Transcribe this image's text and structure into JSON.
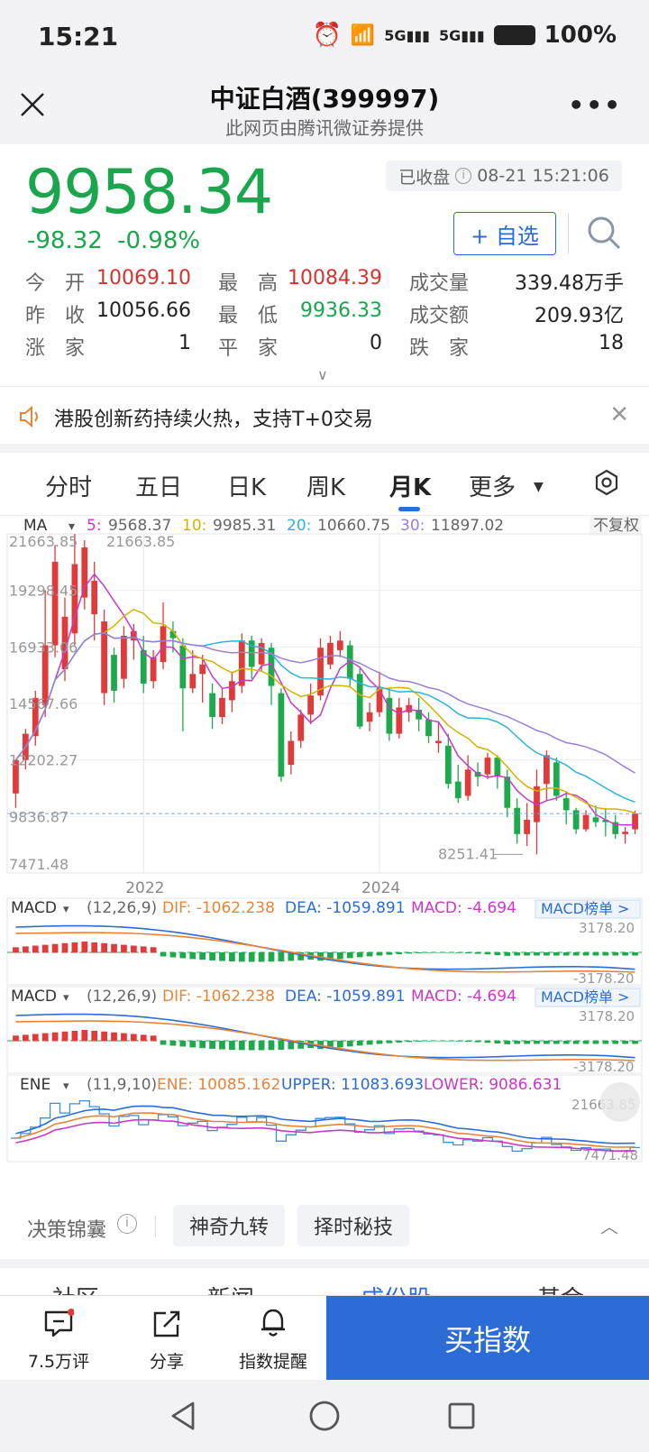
{
  "status": {
    "time": "15:21",
    "battery": "100%"
  },
  "header": {
    "title": "中证白酒(399997)",
    "subtitle": "此网页由腾讯微证券提供"
  },
  "quote": {
    "price": "9958.34",
    "change": "-98.32",
    "change_pct": "-0.98%",
    "status_label": "已收盘",
    "status_time": "08-21 15:21:06",
    "add_label": "+ 自选",
    "rows": [
      [
        {
          "label": "今　开",
          "value": "10069.10",
          "color": "red"
        },
        {
          "label": "最　高",
          "value": "10084.39",
          "color": "red"
        },
        {
          "label": "成交量",
          "value": "339.48万手",
          "color": "black"
        }
      ],
      [
        {
          "label": "昨　收",
          "value": "10056.66",
          "color": "black"
        },
        {
          "label": "最　低",
          "value": "9936.33",
          "color": "green"
        },
        {
          "label": "成交额",
          "value": "209.93亿",
          "color": "black"
        }
      ],
      [
        {
          "label": "涨　家",
          "value": "1",
          "color": "black"
        },
        {
          "label": "平　家",
          "value": "0",
          "color": "black"
        },
        {
          "label": "跌　家",
          "value": "18",
          "color": "black"
        }
      ]
    ]
  },
  "notice": {
    "text": "港股创新药持续火热，支持T+0交易"
  },
  "tabs": [
    "分时",
    "五日",
    "日K",
    "周K",
    "月K",
    "更多"
  ],
  "active_tab": "月K",
  "chart_data": {
    "type": "candlestick",
    "ma_label": "MA",
    "ma_values": [
      {
        "label": "5:",
        "value": "9568.37",
        "color": "#c938c9"
      },
      {
        "label": "10:",
        "value": "9985.31",
        "color": "#d4b300"
      },
      {
        "label": "20:",
        "value": "10660.75",
        "color": "#2ab3dc"
      },
      {
        "label": "30:",
        "value": "11897.02",
        "color": "#9a7fd8"
      }
    ],
    "adjust_label": "不复权",
    "y_ticks": [
      "21663.85",
      "19298.45",
      "16933.06",
      "14567.66",
      "12202.27",
      "9836.87",
      "7471.48"
    ],
    "y_range": [
      7471.48,
      21663.85
    ],
    "x_ticks": [
      "2022",
      "2024"
    ],
    "max_label": "21663.85",
    "min_label": "8251.41",
    "macd": {
      "label": "MACD",
      "params": "(12,26,9)",
      "dif": "DIF: -1062.238",
      "dea": "DEA: -1059.891",
      "macd": "MACD: -4.694",
      "rank_label": "MACD榜单 >",
      "top": "3178.20",
      "bottom": "-3178.20"
    },
    "ene": {
      "label": "ENE",
      "params": "(11,9,10)",
      "ene": "ENE: 10085.162",
      "upper": "UPPER: 11083.693",
      "lower": "LOWER: 9086.631",
      "top": "21663.85",
      "bottom": "7471.48"
    },
    "candles": [
      [
        10800,
        12200,
        11900,
        10200
      ],
      [
        12200,
        13300,
        13500,
        11800
      ],
      [
        13200,
        14800,
        15100,
        12800
      ],
      [
        14500,
        17000,
        19300,
        14000
      ],
      [
        17000,
        20500,
        21200,
        16500
      ],
      [
        16000,
        18200,
        19000,
        15500
      ],
      [
        17500,
        20400,
        21663.85,
        17000
      ],
      [
        19000,
        21100,
        21400,
        18500
      ],
      [
        18300,
        19700,
        20500,
        17200
      ],
      [
        15000,
        18000,
        18500,
        14500
      ],
      [
        16600,
        15100,
        16900,
        14600
      ],
      [
        15600,
        17400,
        17800,
        15200
      ],
      [
        17200,
        17600,
        17900,
        16400
      ],
      [
        16800,
        15400,
        17400,
        15000
      ],
      [
        15500,
        16500,
        16800,
        15200
      ],
      [
        16300,
        17800,
        18800,
        16000
      ],
      [
        17600,
        17300,
        18000,
        16700
      ],
      [
        17000,
        15200,
        17300,
        13400
      ],
      [
        15200,
        15800,
        16800,
        15000
      ],
      [
        15800,
        16200,
        16600,
        14600
      ],
      [
        15000,
        14000,
        15400,
        13500
      ],
      [
        14000,
        14800,
        15200,
        13700
      ],
      [
        14700,
        15500,
        15900,
        14200
      ],
      [
        15300,
        17200,
        17500,
        15000
      ],
      [
        17200,
        16100,
        17400,
        15600
      ],
      [
        16200,
        17100,
        17300,
        15900
      ],
      [
        16900,
        15300,
        17100,
        14500
      ],
      [
        15000,
        11500,
        15200,
        11300
      ],
      [
        12000,
        13000,
        13400,
        11600
      ],
      [
        13000,
        14100,
        14300,
        12700
      ],
      [
        14100,
        14900,
        15400,
        13700
      ],
      [
        14900,
        16900,
        17300,
        14700
      ],
      [
        16200,
        17100,
        17400,
        16000
      ],
      [
        16800,
        17200,
        17600,
        16500
      ],
      [
        17000,
        15600,
        17200,
        15300
      ],
      [
        15800,
        13600,
        16100,
        13500
      ],
      [
        13800,
        14200,
        14600,
        13400
      ],
      [
        14200,
        15200,
        15900,
        14000
      ],
      [
        14800,
        13300,
        15200,
        13000
      ],
      [
        13300,
        14400,
        14800,
        13100
      ],
      [
        14200,
        14500,
        14800,
        13800
      ],
      [
        14300,
        13900,
        14800,
        13400
      ],
      [
        13900,
        13200,
        14200,
        12900
      ],
      [
        12900,
        13000,
        13800,
        12500
      ],
      [
        12800,
        11200,
        13300,
        11000
      ],
      [
        11300,
        10600,
        12000,
        10400
      ],
      [
        10700,
        11800,
        12400,
        10500
      ],
      [
        11700,
        11500,
        12100,
        11100
      ],
      [
        11600,
        12300,
        12500,
        11400
      ],
      [
        12300,
        11500,
        12400,
        11000
      ],
      [
        11500,
        10200,
        11800,
        9800
      ],
      [
        10200,
        9100,
        10600,
        8700
      ],
      [
        9100,
        9700,
        10400,
        8600
      ],
      [
        9600,
        11100,
        11800,
        8251.41
      ],
      [
        11200,
        12400,
        12600,
        10500
      ],
      [
        12100,
        10700,
        12300,
        10500
      ],
      [
        10600,
        10100,
        10900,
        9500
      ],
      [
        10100,
        9300,
        10200,
        9100
      ],
      [
        9300,
        9900,
        10100,
        9200
      ],
      [
        9800,
        9600,
        10300,
        9400
      ],
      [
        9700,
        9600,
        10200,
        9000
      ],
      [
        9600,
        9100,
        9900,
        8900
      ],
      [
        9100,
        9200,
        9400,
        8700
      ],
      [
        9300,
        9958.34,
        10084.39,
        9100
      ]
    ]
  },
  "decision": {
    "label": "决策锦囊",
    "chips": [
      "神奇九转",
      "择时秘技"
    ]
  },
  "peek_tabs": [
    "社区",
    "新闻",
    "成份股",
    "基金"
  ],
  "bottomnav": {
    "comments": "7.5万评",
    "share": "分享",
    "alert": "指数提醒",
    "buy": "买指数"
  }
}
